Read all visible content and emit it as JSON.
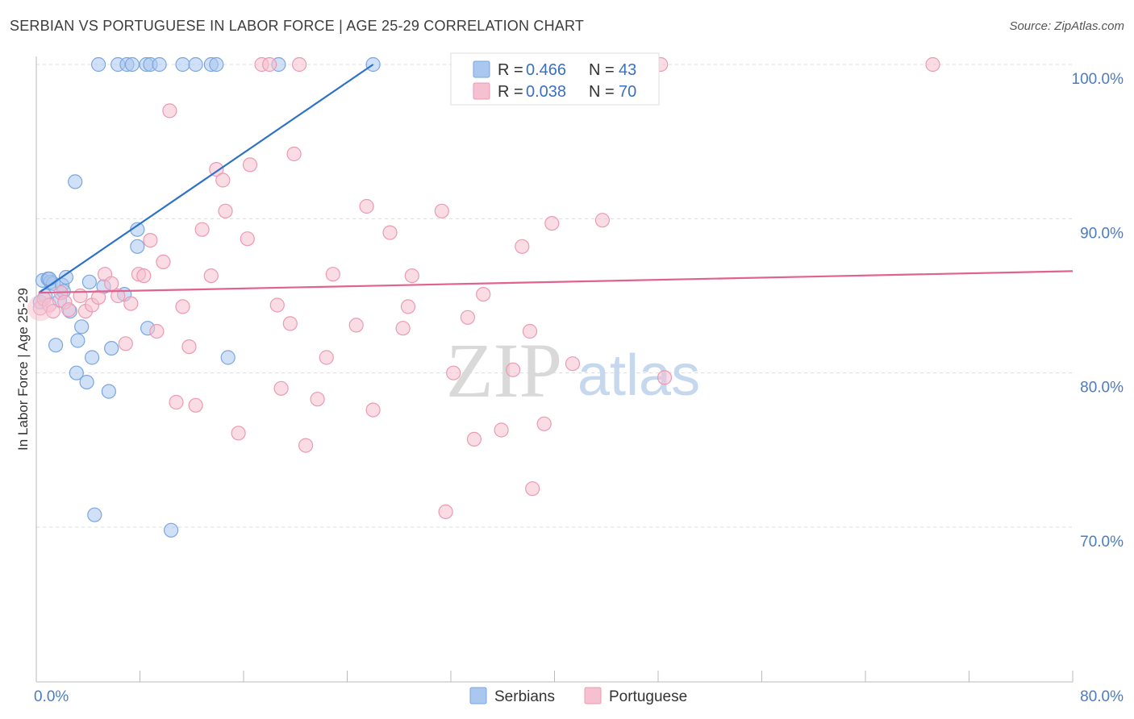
{
  "title": "SERBIAN VS PORTUGUESE IN LABOR FORCE | AGE 25-29 CORRELATION CHART",
  "source": "Source: ZipAtlas.com",
  "watermark": {
    "zip": "ZIP",
    "atlas": "atlas"
  },
  "chart_data": {
    "type": "scatter",
    "ylabel": "In Labor Force | Age 25-29",
    "xlim": [
      0,
      80
    ],
    "ylim": [
      60.5,
      101
    ],
    "y_ticks": [
      {
        "value": 100,
        "label": "100.0%"
      },
      {
        "value": 90,
        "label": "90.0%"
      },
      {
        "value": 80,
        "label": "80.0%"
      },
      {
        "value": 70,
        "label": "70.0%"
      }
    ],
    "x_tick_labels": [
      {
        "value": 0,
        "label": "0.0%"
      },
      {
        "value": 80,
        "label": "80.0%"
      }
    ],
    "x_minor_ticks": [
      0,
      8,
      16,
      24,
      32,
      40,
      48,
      56,
      64,
      72,
      80
    ],
    "grid": true,
    "legend_position": "top-center",
    "series": [
      {
        "name": "Serbians",
        "color": "#a9c7ef",
        "stroke": "#7aa6e0",
        "line_color": "#2d72c9",
        "R": "0.466",
        "N": "43",
        "trend": {
          "x0": 0.2,
          "y0": 85.2,
          "x1": 26.0,
          "y1": 100.0
        },
        "points": [
          [
            0.3,
            84.6
          ],
          [
            0.5,
            86.0
          ],
          [
            0.7,
            85.0
          ],
          [
            0.9,
            86.1
          ],
          [
            1.1,
            85.9
          ],
          [
            1.3,
            85.8
          ],
          [
            1.5,
            81.8
          ],
          [
            1.8,
            84.7
          ],
          [
            2.0,
            85.7
          ],
          [
            2.3,
            86.2
          ],
          [
            2.6,
            84.0
          ],
          [
            3.1,
            80.0
          ],
          [
            3.2,
            82.1
          ],
          [
            3.5,
            83.0
          ],
          [
            3.9,
            79.4
          ],
          [
            4.1,
            85.9
          ],
          [
            4.3,
            81.0
          ],
          [
            4.5,
            70.8
          ],
          [
            4.8,
            100.0
          ],
          [
            5.2,
            85.6
          ],
          [
            5.6,
            78.8
          ],
          [
            5.8,
            81.6
          ],
          [
            6.3,
            100.0
          ],
          [
            6.8,
            85.1
          ],
          [
            7.0,
            100.0
          ],
          [
            7.4,
            100.0
          ],
          [
            7.8,
            89.3
          ],
          [
            7.8,
            88.2
          ],
          [
            8.5,
            100.0
          ],
          [
            8.6,
            82.9
          ],
          [
            8.8,
            100.0
          ],
          [
            9.5,
            100.0
          ],
          [
            10.4,
            69.8
          ],
          [
            11.3,
            100.0
          ],
          [
            12.3,
            100.0
          ],
          [
            13.5,
            100.0
          ],
          [
            13.9,
            100.0
          ],
          [
            14.8,
            81.0
          ],
          [
            18.7,
            100.0
          ],
          [
            26.0,
            100.0
          ],
          [
            3.0,
            92.4
          ],
          [
            1.0,
            86.1
          ],
          [
            2.1,
            85.3
          ]
        ]
      },
      {
        "name": "Portuguese",
        "color": "#f5c0d0",
        "stroke": "#eb9ab3",
        "line_color": "#e0628f",
        "R": "0.038",
        "N": "70",
        "trend": {
          "x0": 0.2,
          "y0": 85.2,
          "x1": 80.0,
          "y1": 86.6
        },
        "points": [
          [
            0.3,
            84.2
          ],
          [
            0.6,
            84.8
          ],
          [
            1.0,
            84.4
          ],
          [
            1.3,
            84.0
          ],
          [
            1.9,
            85.2
          ],
          [
            2.2,
            84.6
          ],
          [
            2.5,
            84.1
          ],
          [
            3.4,
            85.0
          ],
          [
            3.8,
            84.0
          ],
          [
            4.3,
            84.4
          ],
          [
            4.8,
            84.9
          ],
          [
            5.3,
            86.4
          ],
          [
            5.8,
            85.8
          ],
          [
            6.3,
            85.0
          ],
          [
            6.9,
            81.9
          ],
          [
            7.3,
            84.5
          ],
          [
            7.9,
            86.4
          ],
          [
            8.3,
            86.3
          ],
          [
            8.8,
            88.6
          ],
          [
            9.3,
            82.7
          ],
          [
            9.8,
            87.2
          ],
          [
            10.3,
            97.0
          ],
          [
            10.8,
            78.1
          ],
          [
            11.3,
            84.3
          ],
          [
            11.8,
            81.7
          ],
          [
            12.3,
            77.9
          ],
          [
            12.8,
            89.3
          ],
          [
            13.5,
            86.3
          ],
          [
            13.9,
            93.2
          ],
          [
            14.4,
            92.5
          ],
          [
            14.6,
            90.5
          ],
          [
            15.6,
            76.1
          ],
          [
            16.3,
            88.7
          ],
          [
            16.5,
            93.5
          ],
          [
            17.4,
            100.0
          ],
          [
            18.0,
            100.0
          ],
          [
            18.6,
            84.4
          ],
          [
            18.9,
            79.0
          ],
          [
            19.6,
            83.2
          ],
          [
            19.9,
            94.2
          ],
          [
            20.3,
            100.0
          ],
          [
            20.8,
            75.3
          ],
          [
            21.7,
            78.3
          ],
          [
            22.4,
            81.0
          ],
          [
            22.9,
            86.4
          ],
          [
            24.7,
            83.1
          ],
          [
            25.5,
            90.8
          ],
          [
            26.0,
            77.6
          ],
          [
            27.3,
            89.1
          ],
          [
            28.3,
            82.9
          ],
          [
            28.7,
            84.3
          ],
          [
            29.0,
            86.3
          ],
          [
            31.3,
            90.5
          ],
          [
            31.6,
            71.0
          ],
          [
            32.2,
            80.0
          ],
          [
            33.3,
            83.6
          ],
          [
            33.8,
            75.7
          ],
          [
            34.5,
            85.1
          ],
          [
            35.9,
            76.3
          ],
          [
            36.8,
            80.2
          ],
          [
            37.5,
            88.2
          ],
          [
            38.1,
            82.7
          ],
          [
            38.3,
            72.5
          ],
          [
            39.2,
            76.7
          ],
          [
            39.8,
            89.7
          ],
          [
            41.4,
            80.6
          ],
          [
            43.7,
            89.9
          ],
          [
            48.5,
            79.7
          ],
          [
            48.2,
            100.0
          ],
          [
            69.2,
            100.0
          ]
        ]
      }
    ]
  }
}
